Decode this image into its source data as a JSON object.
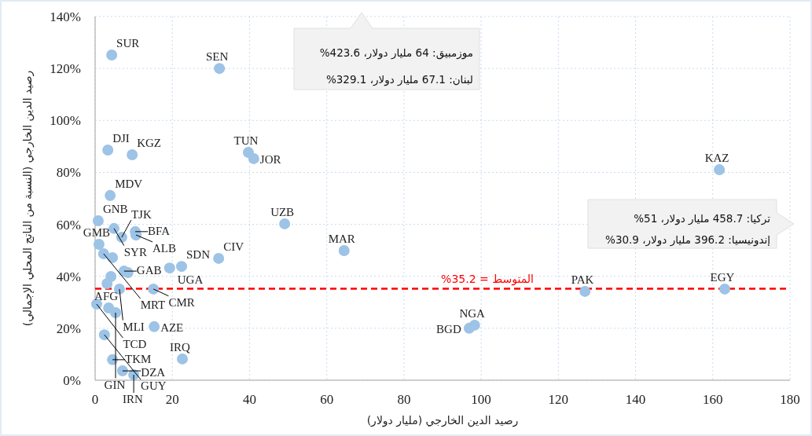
{
  "chart_data": {
    "type": "scatter",
    "xlabel": "رصيد الدين الخارجي (مليار دولار)",
    "ylabel": "رصيد الدين الخارجي (النسبة من الناتج المحلي الإجمالي)",
    "xlim": [
      0,
      180
    ],
    "xticks": [
      0,
      20,
      40,
      60,
      80,
      100,
      120,
      140,
      160,
      180
    ],
    "ylim": [
      0,
      140
    ],
    "yticks": [
      {
        "value": 0,
        "label": "0%"
      },
      {
        "value": 20,
        "label": "20%"
      },
      {
        "value": 40,
        "label": "40%"
      },
      {
        "value": 60,
        "label": "60%"
      },
      {
        "value": 80,
        "label": "80%"
      },
      {
        "value": 100,
        "label": "100%"
      },
      {
        "value": 120,
        "label": "120%"
      },
      {
        "value": 140,
        "label": "140%"
      }
    ],
    "grid": true,
    "marker": "circle",
    "series": [
      {
        "color": "#9dc3e6",
        "x": [
          4.3,
          32.2,
          3.3,
          9.6,
          39.7,
          41.1,
          161.7,
          3.9,
          0.8,
          4.9,
          6.9,
          10.4,
          10.6,
          1.0,
          2.2,
          4.5,
          7.5,
          8.5,
          19.3,
          22.4,
          32.0,
          49.1,
          64.5,
          4.1,
          3.1,
          6.3,
          15.1,
          0.4,
          3.5,
          5.3,
          15.3,
          2.4,
          4.5,
          7.1,
          10.0,
          22.6,
          96.9,
          98.3,
          126.9,
          163.1
        ],
        "values": [
          125.2,
          120.0,
          88.6,
          86.8,
          87.7,
          85.3,
          81.0,
          71.1,
          61.4,
          58.4,
          55.0,
          57.2,
          55.9,
          52.3,
          48.7,
          47.2,
          42.0,
          41.4,
          43.2,
          43.8,
          46.9,
          60.2,
          49.9,
          39.9,
          37.2,
          35.1,
          35.1,
          29.3,
          27.8,
          26.0,
          20.6,
          17.5,
          7.9,
          3.6,
          2.1,
          8.2,
          20.0,
          21.2,
          34.2,
          35.1
        ]
      }
    ],
    "ref_lines": [
      {
        "axis": "y",
        "value": 35.2,
        "label": "المتوسط = 35.2%",
        "color": "#ff0000",
        "line_style": "dashed"
      }
    ],
    "annotations": [
      {
        "text": "SUR",
        "x": 4.3,
        "y": 125.2
      },
      {
        "text": "SEN",
        "x": 32.2,
        "y": 120.0
      },
      {
        "text": "DJI",
        "x": 3.3,
        "y": 88.6
      },
      {
        "text": "KGZ",
        "x": 9.6,
        "y": 86.8
      },
      {
        "text": "TUN",
        "x": 39.7,
        "y": 87.7
      },
      {
        "text": "JOR",
        "x": 41.1,
        "y": 85.3
      },
      {
        "text": "KAZ",
        "x": 161.7,
        "y": 81.0
      },
      {
        "text": "MDV",
        "x": 3.9,
        "y": 71.1
      },
      {
        "text": "GNB",
        "x": 0.8,
        "y": 61.4
      },
      {
        "text": "SYR",
        "x": 4.9,
        "y": 58.4
      },
      {
        "text": "TJK",
        "x": 6.9,
        "y": 55.0
      },
      {
        "text": "BFA",
        "x": 10.4,
        "y": 57.2
      },
      {
        "text": "ALB",
        "x": 10.6,
        "y": 55.9
      },
      {
        "text": "GMB",
        "x": 1.0,
        "y": 52.3
      },
      {
        "text": "MRT",
        "x": 2.2,
        "y": 48.7
      },
      {
        "text": "GAB",
        "x": 7.5,
        "y": 42.0
      },
      {
        "text": "UGA",
        "x": 19.3,
        "y": 43.2
      },
      {
        "text": "SDN",
        "x": 22.4,
        "y": 43.8
      },
      {
        "text": "CIV",
        "x": 32.0,
        "y": 46.9
      },
      {
        "text": "UZB",
        "x": 49.1,
        "y": 60.2
      },
      {
        "text": "MAR",
        "x": 64.5,
        "y": 49.9
      },
      {
        "text": "MLI",
        "x": 6.3,
        "y": 35.1
      },
      {
        "text": "CMR",
        "x": 15.1,
        "y": 35.1
      },
      {
        "text": "TCD",
        "x": 0.4,
        "y": 29.3
      },
      {
        "text": "AFG",
        "x": 3.5,
        "y": 27.8
      },
      {
        "text": "GIN",
        "x": 5.3,
        "y": 26.0
      },
      {
        "text": "AZE",
        "x": 15.3,
        "y": 20.6
      },
      {
        "text": "GUY",
        "x": 2.4,
        "y": 17.5
      },
      {
        "text": "TKM",
        "x": 4.5,
        "y": 7.9
      },
      {
        "text": "DZA",
        "x": 7.1,
        "y": 3.6
      },
      {
        "text": "IRN",
        "x": 10.0,
        "y": 2.1
      },
      {
        "text": "IRQ",
        "x": 22.6,
        "y": 8.2
      },
      {
        "text": "BGD",
        "x": 96.9,
        "y": 20.0
      },
      {
        "text": "NGA",
        "x": 98.3,
        "y": 21.2
      },
      {
        "text": "PAK",
        "x": 126.9,
        "y": 34.2
      },
      {
        "text": "EGY",
        "x": 163.1,
        "y": 35.1
      },
      "موزمبيق: 64 مليار دولار، 423.6%\nلبنان: 67.1 مليار دولار، 329.1%",
      "تركيا: 458.7 مليار دولار، 51%\nإندونيسيا: 396.2 مليار دولار، 30.9%"
    ]
  }
}
